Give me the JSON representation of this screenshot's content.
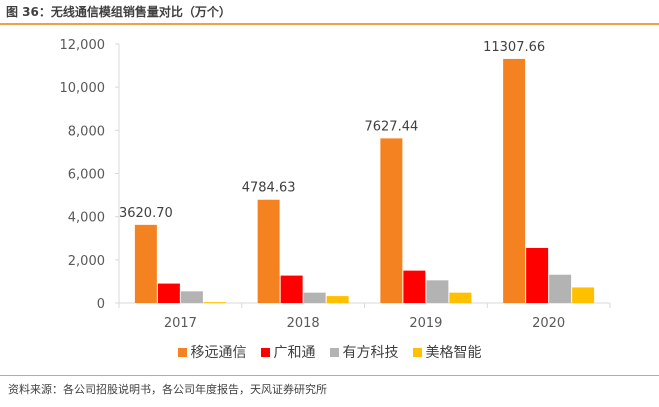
{
  "figure": {
    "title": "图 36：无线通信模组销售量对比（万个）",
    "source": "资料来源：各公司招股说明书，各公司年度报告，天风证券研究所"
  },
  "colors": {
    "rule": "#f0a040",
    "series": [
      "#f58220",
      "#ff0000",
      "#b3b3b3",
      "#ffc000"
    ]
  },
  "chart_data": {
    "type": "bar",
    "title": "",
    "xlabel": "",
    "ylabel": "",
    "categories": [
      "2017",
      "2018",
      "2019",
      "2020"
    ],
    "ylim": [
      0,
      12000
    ],
    "yticks": [
      0,
      2000,
      4000,
      6000,
      8000,
      10000,
      12000
    ],
    "ytick_labels": [
      "0",
      "2,000",
      "4,000",
      "6,000",
      "8,000",
      "10,000",
      "12,000"
    ],
    "grid": false,
    "legend_position": "bottom",
    "series": [
      {
        "name": "移远通信",
        "values": [
          3620.7,
          4784.63,
          7627.44,
          11307.66
        ],
        "labels": [
          "3620.70",
          "4784.63",
          "7627.44",
          "11307.66"
        ]
      },
      {
        "name": "广和通",
        "values": [
          900,
          1270,
          1500,
          2550
        ]
      },
      {
        "name": "有方科技",
        "values": [
          540,
          480,
          1050,
          1310
        ]
      },
      {
        "name": "美格智能",
        "values": [
          40,
          320,
          480,
          720
        ]
      }
    ]
  }
}
